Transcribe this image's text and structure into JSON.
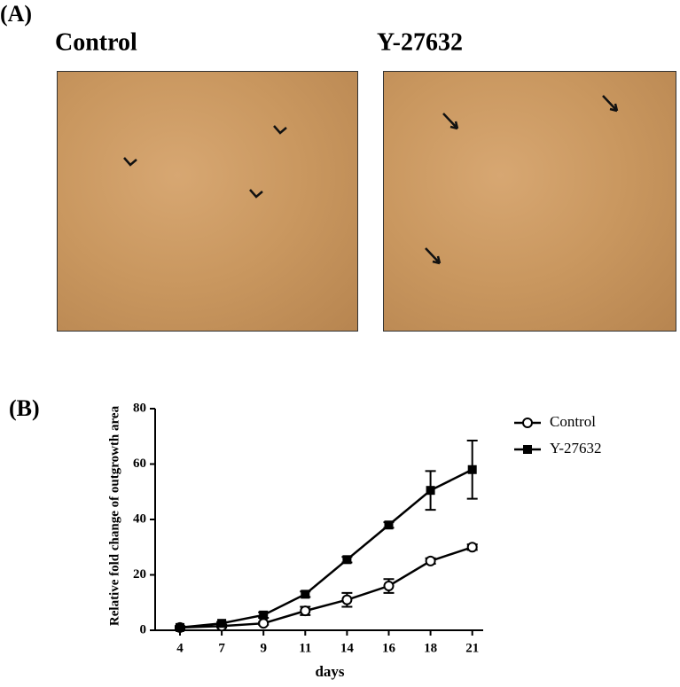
{
  "panel_a": {
    "label": "(A)",
    "images": [
      {
        "title": "Control"
      },
      {
        "title": "Y-27632"
      }
    ]
  },
  "panel_b_label": "(B)",
  "chart_data": {
    "type": "line",
    "x_label": "days",
    "y_label": "Relative fold change of outgrowth area",
    "categories": [
      "4",
      "7",
      "9",
      "11",
      "14",
      "16",
      "18",
      "21"
    ],
    "series": [
      {
        "name": "Control",
        "color": "#000000",
        "marker": "circle-open",
        "values": [
          1,
          1.5,
          2.5,
          7,
          11,
          16,
          25,
          30
        ],
        "errors": [
          0.5,
          0.5,
          0.5,
          1.5,
          2.5,
          2.5,
          1,
          1
        ]
      },
      {
        "name": "Y-27632",
        "color": "#000000",
        "marker": "square",
        "values": [
          1,
          2.5,
          5.5,
          13,
          25.5,
          38,
          50.5,
          58
        ],
        "errors": [
          0.5,
          0.5,
          1,
          1,
          1,
          1,
          7,
          10.5
        ]
      }
    ],
    "ylim": [
      0,
      80
    ],
    "yticks": [
      0,
      20,
      40,
      60,
      80
    ],
    "legend": "upper right"
  }
}
